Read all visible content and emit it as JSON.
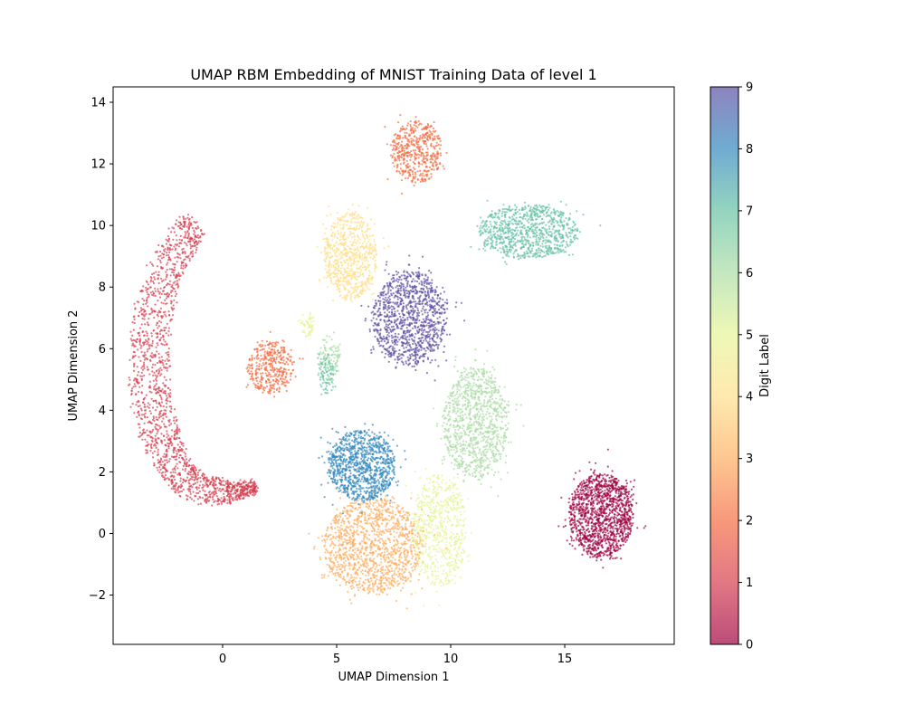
{
  "chart_data": {
    "type": "scatter",
    "title": "UMAP RBM Embedding of MNIST Training Data of level 1",
    "xlabel": "UMAP Dimension 1",
    "ylabel": "UMAP Dimension 2",
    "xlim": [
      -4.8,
      19.8
    ],
    "ylim": [
      -3.6,
      14.5
    ],
    "xticks": [
      0,
      5,
      10,
      15
    ],
    "yticks": [
      -2,
      0,
      2,
      4,
      6,
      8,
      10,
      12,
      14
    ],
    "grid": false,
    "colormap": "Spectral",
    "point_alpha": 0.7,
    "colorbar": {
      "label": "Digit Label",
      "range": [
        0,
        9
      ],
      "ticks": [
        0,
        1,
        2,
        3,
        4,
        5,
        6,
        7,
        8,
        9
      ]
    },
    "colors": {
      "0": "#9e0142",
      "1": "#d53e4f",
      "2": "#f46d43",
      "3": "#fdae61",
      "4": "#fee08b",
      "5": "#e6f598",
      "6": "#abdda4",
      "7": "#66c2a5",
      "8": "#3288bd",
      "9": "#5e4fa2"
    },
    "clusters": [
      {
        "label": 0,
        "kind": "blob",
        "center": [
          16.6,
          0.6
        ],
        "spread": [
          1.05,
          1.0
        ],
        "n": 1300
      },
      {
        "label": 1,
        "kind": "arc",
        "path": [
          [
            -1.2,
            10.1
          ],
          [
            -2.5,
            8.6
          ],
          [
            -3.2,
            6.6
          ],
          [
            -3.2,
            4.5
          ],
          [
            -2.6,
            2.8
          ],
          [
            -1.5,
            1.6
          ],
          [
            0.2,
            1.3
          ],
          [
            1.5,
            1.5
          ]
        ],
        "width": [
          0.55,
          0.75,
          0.85,
          0.9,
          0.8,
          0.6,
          0.35,
          0.15
        ],
        "n": 1700
      },
      {
        "label": 2,
        "kind": "blob",
        "center": [
          8.5,
          12.4
        ],
        "spread": [
          0.85,
          0.75
        ],
        "n": 500
      },
      {
        "label": 2,
        "kind": "blob",
        "center": [
          2.1,
          5.4
        ],
        "spread": [
          0.75,
          0.65
        ],
        "n": 380
      },
      {
        "label": 3,
        "kind": "blob",
        "center": [
          6.6,
          -0.4
        ],
        "spread": [
          1.6,
          1.15
        ],
        "n": 1300
      },
      {
        "label": 4,
        "kind": "blob",
        "center": [
          5.6,
          9.0
        ],
        "spread": [
          0.85,
          1.05
        ],
        "n": 750
      },
      {
        "label": 5,
        "kind": "blob",
        "center": [
          9.5,
          0.1
        ],
        "spread": [
          0.9,
          1.35
        ],
        "n": 650
      },
      {
        "label": 5,
        "kind": "blob",
        "center": [
          3.7,
          6.8
        ],
        "spread": [
          0.25,
          0.3
        ],
        "n": 60
      },
      {
        "label": 6,
        "kind": "blob",
        "center": [
          11.1,
          3.6
        ],
        "spread": [
          1.05,
          1.35
        ],
        "n": 1000
      },
      {
        "label": 6,
        "kind": "blob",
        "center": [
          4.7,
          5.7
        ],
        "spread": [
          0.35,
          0.6
        ],
        "n": 120
      },
      {
        "label": 7,
        "kind": "blob",
        "center": [
          13.4,
          9.8
        ],
        "spread": [
          1.6,
          0.65
        ],
        "n": 900
      },
      {
        "label": 7,
        "kind": "blob",
        "center": [
          4.6,
          5.2
        ],
        "spread": [
          0.3,
          0.5
        ],
        "n": 80
      },
      {
        "label": 8,
        "kind": "blob",
        "center": [
          6.1,
          2.2
        ],
        "spread": [
          1.1,
          0.85
        ],
        "n": 1000
      },
      {
        "label": 9,
        "kind": "blob",
        "center": [
          8.2,
          7.0
        ],
        "spread": [
          1.2,
          1.15
        ],
        "n": 1100
      }
    ]
  }
}
